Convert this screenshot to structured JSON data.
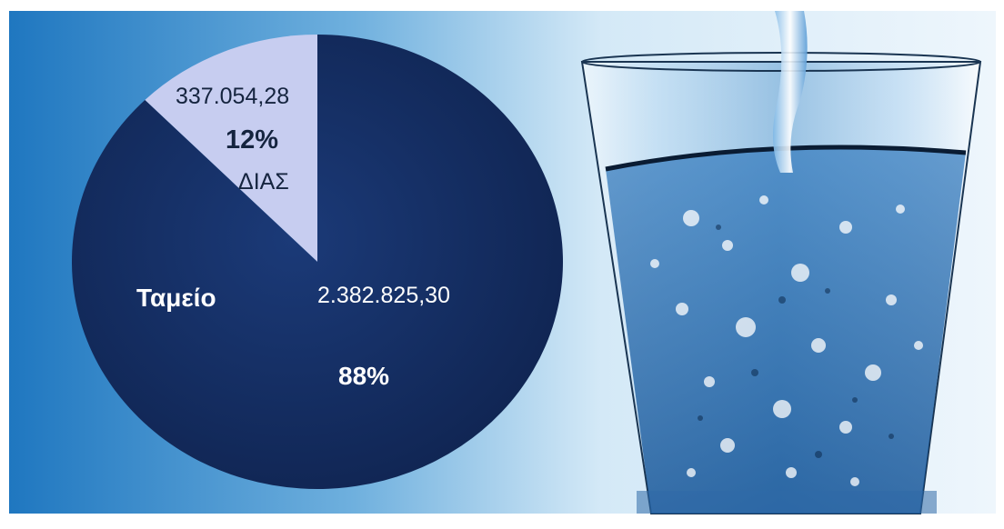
{
  "chart_data": {
    "type": "pie",
    "slices": [
      {
        "label": "ΔΙΑΣ",
        "value": 337054.28,
        "value_text": "337.054,28",
        "percent_text": "12%",
        "color": "#c7cdf0"
      },
      {
        "label": "Ταμείο",
        "value": 2382825.3,
        "value_text": "2.382.825,30",
        "percent_text": "88%",
        "color": "#142d63"
      }
    ],
    "start": "top, clockwise"
  },
  "colors": {
    "background_blue": "#1f77c0",
    "pie_dark": "#142d63",
    "pie_light": "#c7cdf0",
    "label_dark": "#15243f",
    "label_light": "#ffffff"
  },
  "image": {
    "subject": "glass of water"
  }
}
